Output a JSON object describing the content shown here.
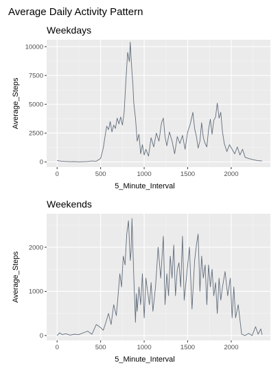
{
  "figure": {
    "title": "Average Daily Activity Pattern"
  },
  "chart_data": [
    {
      "type": "line",
      "title": "Weekdays",
      "xlabel": "5_Minute_Interval",
      "ylabel": "Average_Steps",
      "xlim": [
        -120,
        2450
      ],
      "ylim": [
        -450,
        10600
      ],
      "xticks": [
        0,
        500,
        1000,
        1500,
        2000
      ],
      "xtick_labels": [
        "0",
        "500",
        "1000",
        "1500",
        "2000"
      ],
      "yticks": [
        0,
        2500,
        5000,
        7500,
        10000
      ],
      "ytick_labels": [
        "0",
        "2500",
        "5000",
        "7500",
        "10000"
      ],
      "grid": true,
      "line_color": "#5f6b7a",
      "panel_color": "#ebebeb",
      "x": [
        0,
        50,
        100,
        150,
        200,
        250,
        300,
        350,
        400,
        450,
        500,
        530,
        550,
        570,
        590,
        610,
        630,
        650,
        670,
        690,
        710,
        730,
        750,
        770,
        790,
        810,
        830,
        840,
        850,
        860,
        870,
        880,
        900,
        920,
        940,
        960,
        980,
        1000,
        1020,
        1050,
        1080,
        1110,
        1140,
        1170,
        1200,
        1220,
        1240,
        1260,
        1290,
        1320,
        1350,
        1380,
        1410,
        1440,
        1470,
        1500,
        1530,
        1560,
        1580,
        1600,
        1620,
        1640,
        1660,
        1680,
        1700,
        1720,
        1740,
        1760,
        1780,
        1800,
        1820,
        1840,
        1860,
        1880,
        1900,
        1920,
        1950,
        1980,
        2010,
        2040,
        2070,
        2100,
        2130,
        2160,
        2200,
        2250,
        2300,
        2355
      ],
      "y": [
        120,
        60,
        40,
        20,
        30,
        10,
        20,
        40,
        80,
        60,
        300,
        1200,
        2200,
        3100,
        2800,
        3500,
        2600,
        3200,
        2900,
        3800,
        3300,
        3900,
        3200,
        4300,
        7000,
        9500,
        8700,
        10400,
        9000,
        7800,
        6800,
        5200,
        3800,
        1800,
        2400,
        700,
        1500,
        600,
        1100,
        500,
        2100,
        1300,
        2500,
        1800,
        3400,
        3800,
        2200,
        1400,
        2600,
        1800,
        700,
        2200,
        1600,
        2300,
        1100,
        2600,
        3300,
        4300,
        2900,
        2200,
        1200,
        1800,
        3400,
        2100,
        1600,
        1300,
        2800,
        3700,
        2400,
        3600,
        3900,
        5100,
        3800,
        4300,
        2600,
        1600,
        900,
        1500,
        1100,
        700,
        1300,
        600,
        1100,
        400,
        300,
        200,
        120,
        80
      ]
    },
    {
      "type": "line",
      "title": "Weekends",
      "xlabel": "5_Minute_Interval",
      "ylabel": "Average_Steps",
      "xlim": [
        -120,
        2450
      ],
      "ylim": [
        -110,
        2760
      ],
      "xticks": [
        0,
        500,
        1000,
        1500,
        2000
      ],
      "xtick_labels": [
        "0",
        "500",
        "1000",
        "1500",
        "2000"
      ],
      "yticks": [
        0,
        1000,
        2000
      ],
      "ytick_labels": [
        "0",
        "1000",
        "2000"
      ],
      "grid": true,
      "line_color": "#5f6b7a",
      "panel_color": "#ebebeb",
      "x": [
        0,
        30,
        60,
        100,
        150,
        200,
        250,
        300,
        350,
        400,
        450,
        500,
        530,
        560,
        590,
        620,
        650,
        680,
        700,
        720,
        740,
        760,
        780,
        800,
        820,
        840,
        850,
        860,
        880,
        900,
        910,
        920,
        940,
        960,
        980,
        1000,
        1020,
        1040,
        1060,
        1080,
        1100,
        1130,
        1160,
        1190,
        1220,
        1240,
        1260,
        1280,
        1300,
        1320,
        1340,
        1360,
        1380,
        1400,
        1420,
        1440,
        1460,
        1490,
        1520,
        1550,
        1580,
        1600,
        1620,
        1640,
        1660,
        1680,
        1700,
        1720,
        1740,
        1760,
        1780,
        1800,
        1820,
        1840,
        1860,
        1880,
        1900,
        1930,
        1960,
        1990,
        2010,
        2030,
        2050,
        2080,
        2120,
        2160,
        2200,
        2240,
        2280,
        2310,
        2340,
        2355
      ],
      "y": [
        0,
        60,
        20,
        40,
        10,
        30,
        20,
        60,
        100,
        30,
        250,
        180,
        120,
        300,
        500,
        250,
        700,
        450,
        900,
        1400,
        1100,
        1800,
        1600,
        2300,
        2600,
        1700,
        1900,
        2650,
        1400,
        300,
        950,
        550,
        1100,
        700,
        1400,
        400,
        1300,
        1000,
        700,
        1200,
        550,
        1100,
        2000,
        1300,
        2250,
        700,
        1400,
        900,
        1800,
        1300,
        2050,
        900,
        1500,
        1650,
        1100,
        2250,
        800,
        1400,
        2000,
        600,
        1700,
        2050,
        2300,
        1000,
        1800,
        1300,
        1600,
        700,
        1600,
        1100,
        1500,
        900,
        1200,
        500,
        1300,
        800,
        1100,
        1450,
        900,
        1300,
        400,
        1100,
        400,
        700,
        30,
        0,
        50,
        0,
        200,
        30,
        150,
        20
      ]
    }
  ]
}
